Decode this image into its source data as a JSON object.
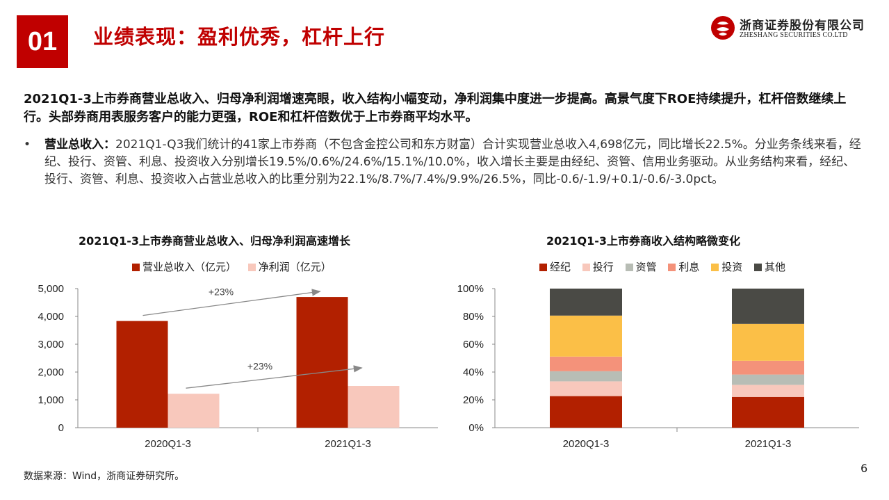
{
  "header": {
    "section_number": "01",
    "title": "业绩表现：盈利优秀，杠杆上行",
    "logo_cn": "浙商证券股份有限公司",
    "logo_en": "ZHESHANG SECURITIES CO.LTD"
  },
  "summary": "2021Q1-3上市券商营业总收入、归母净利润增速亮眼，收入结构小幅变动，净利润集中度进一步提高。高景气度下ROE持续提升，杠杆倍数继续上行。头部券商用表服务客户的能力更强，ROE和杠杆倍数优于上市券商平均水平。",
  "bullet": {
    "marker": "•",
    "label": "营业总收入：",
    "text": "2021Q1-Q3我们统计的41家上市券商（不包含金控公司和东方财富）合计实现营业总收入4,698亿元，同比增长22.5%。分业务条线来看，经纪、投行、资管、利息、投资收入分别增长19.5%/0.6%/24.6%/15.1%/10.0%，收入增长主要是由经纪、资管、信用业务驱动。从业务结构来看，经纪、投行、资管、利息、投资收入占营业总收入的比重分别为22.1%/8.7%/7.4%/9.9%/26.5%，同比-0.6/-1.9/+0.1/-0.6/-3.0pct。"
  },
  "chart_data": [
    {
      "type": "bar",
      "title": "2021Q1-3上市券商营业总收入、归母净利润高速增长",
      "categories": [
        "2020Q1-3",
        "2021Q1-3"
      ],
      "series": [
        {
          "name": "营业总收入（亿元）",
          "values": [
            3835,
            4698
          ],
          "color": "#b22000"
        },
        {
          "name": "净利润（亿元）",
          "values": [
            1220,
            1500
          ],
          "color": "#f8c8bc"
        }
      ],
      "ylim": [
        0,
        5000
      ],
      "yticks": [
        "0",
        "1,000",
        "2,000",
        "3,000",
        "4,000",
        "5,000"
      ],
      "yticks_values": [
        0,
        1000,
        2000,
        3000,
        4000,
        5000
      ],
      "annotations": [
        "+23%",
        "+23%"
      ],
      "legend": "top"
    },
    {
      "type": "bar",
      "stacked": true,
      "title": "2021Q1-3上市券商收入结构略微变化",
      "categories": [
        "2020Q1-3",
        "2021Q1-3"
      ],
      "series": [
        {
          "name": "经纪",
          "values": [
            22.7,
            22.1
          ],
          "color": "#b22000"
        },
        {
          "name": "投行",
          "values": [
            10.6,
            8.7
          ],
          "color": "#f8c8bc"
        },
        {
          "name": "资管",
          "values": [
            7.3,
            7.4
          ],
          "color": "#b8bdb5"
        },
        {
          "name": "利息",
          "values": [
            10.5,
            9.9
          ],
          "color": "#f4927a"
        },
        {
          "name": "投资",
          "values": [
            29.5,
            26.5
          ],
          "color": "#fbbf47"
        },
        {
          "name": "其他",
          "values": [
            19.4,
            25.4
          ],
          "color": "#4a4a45"
        }
      ],
      "ylim": [
        0,
        100
      ],
      "yticks": [
        "0%",
        "20%",
        "40%",
        "60%",
        "80%",
        "100%"
      ],
      "yticks_values": [
        0,
        20,
        40,
        60,
        80,
        100
      ],
      "legend": "top"
    }
  ],
  "footer": {
    "source": "数据来源：Wind，浙商证券研究所。",
    "page_number": "6"
  }
}
